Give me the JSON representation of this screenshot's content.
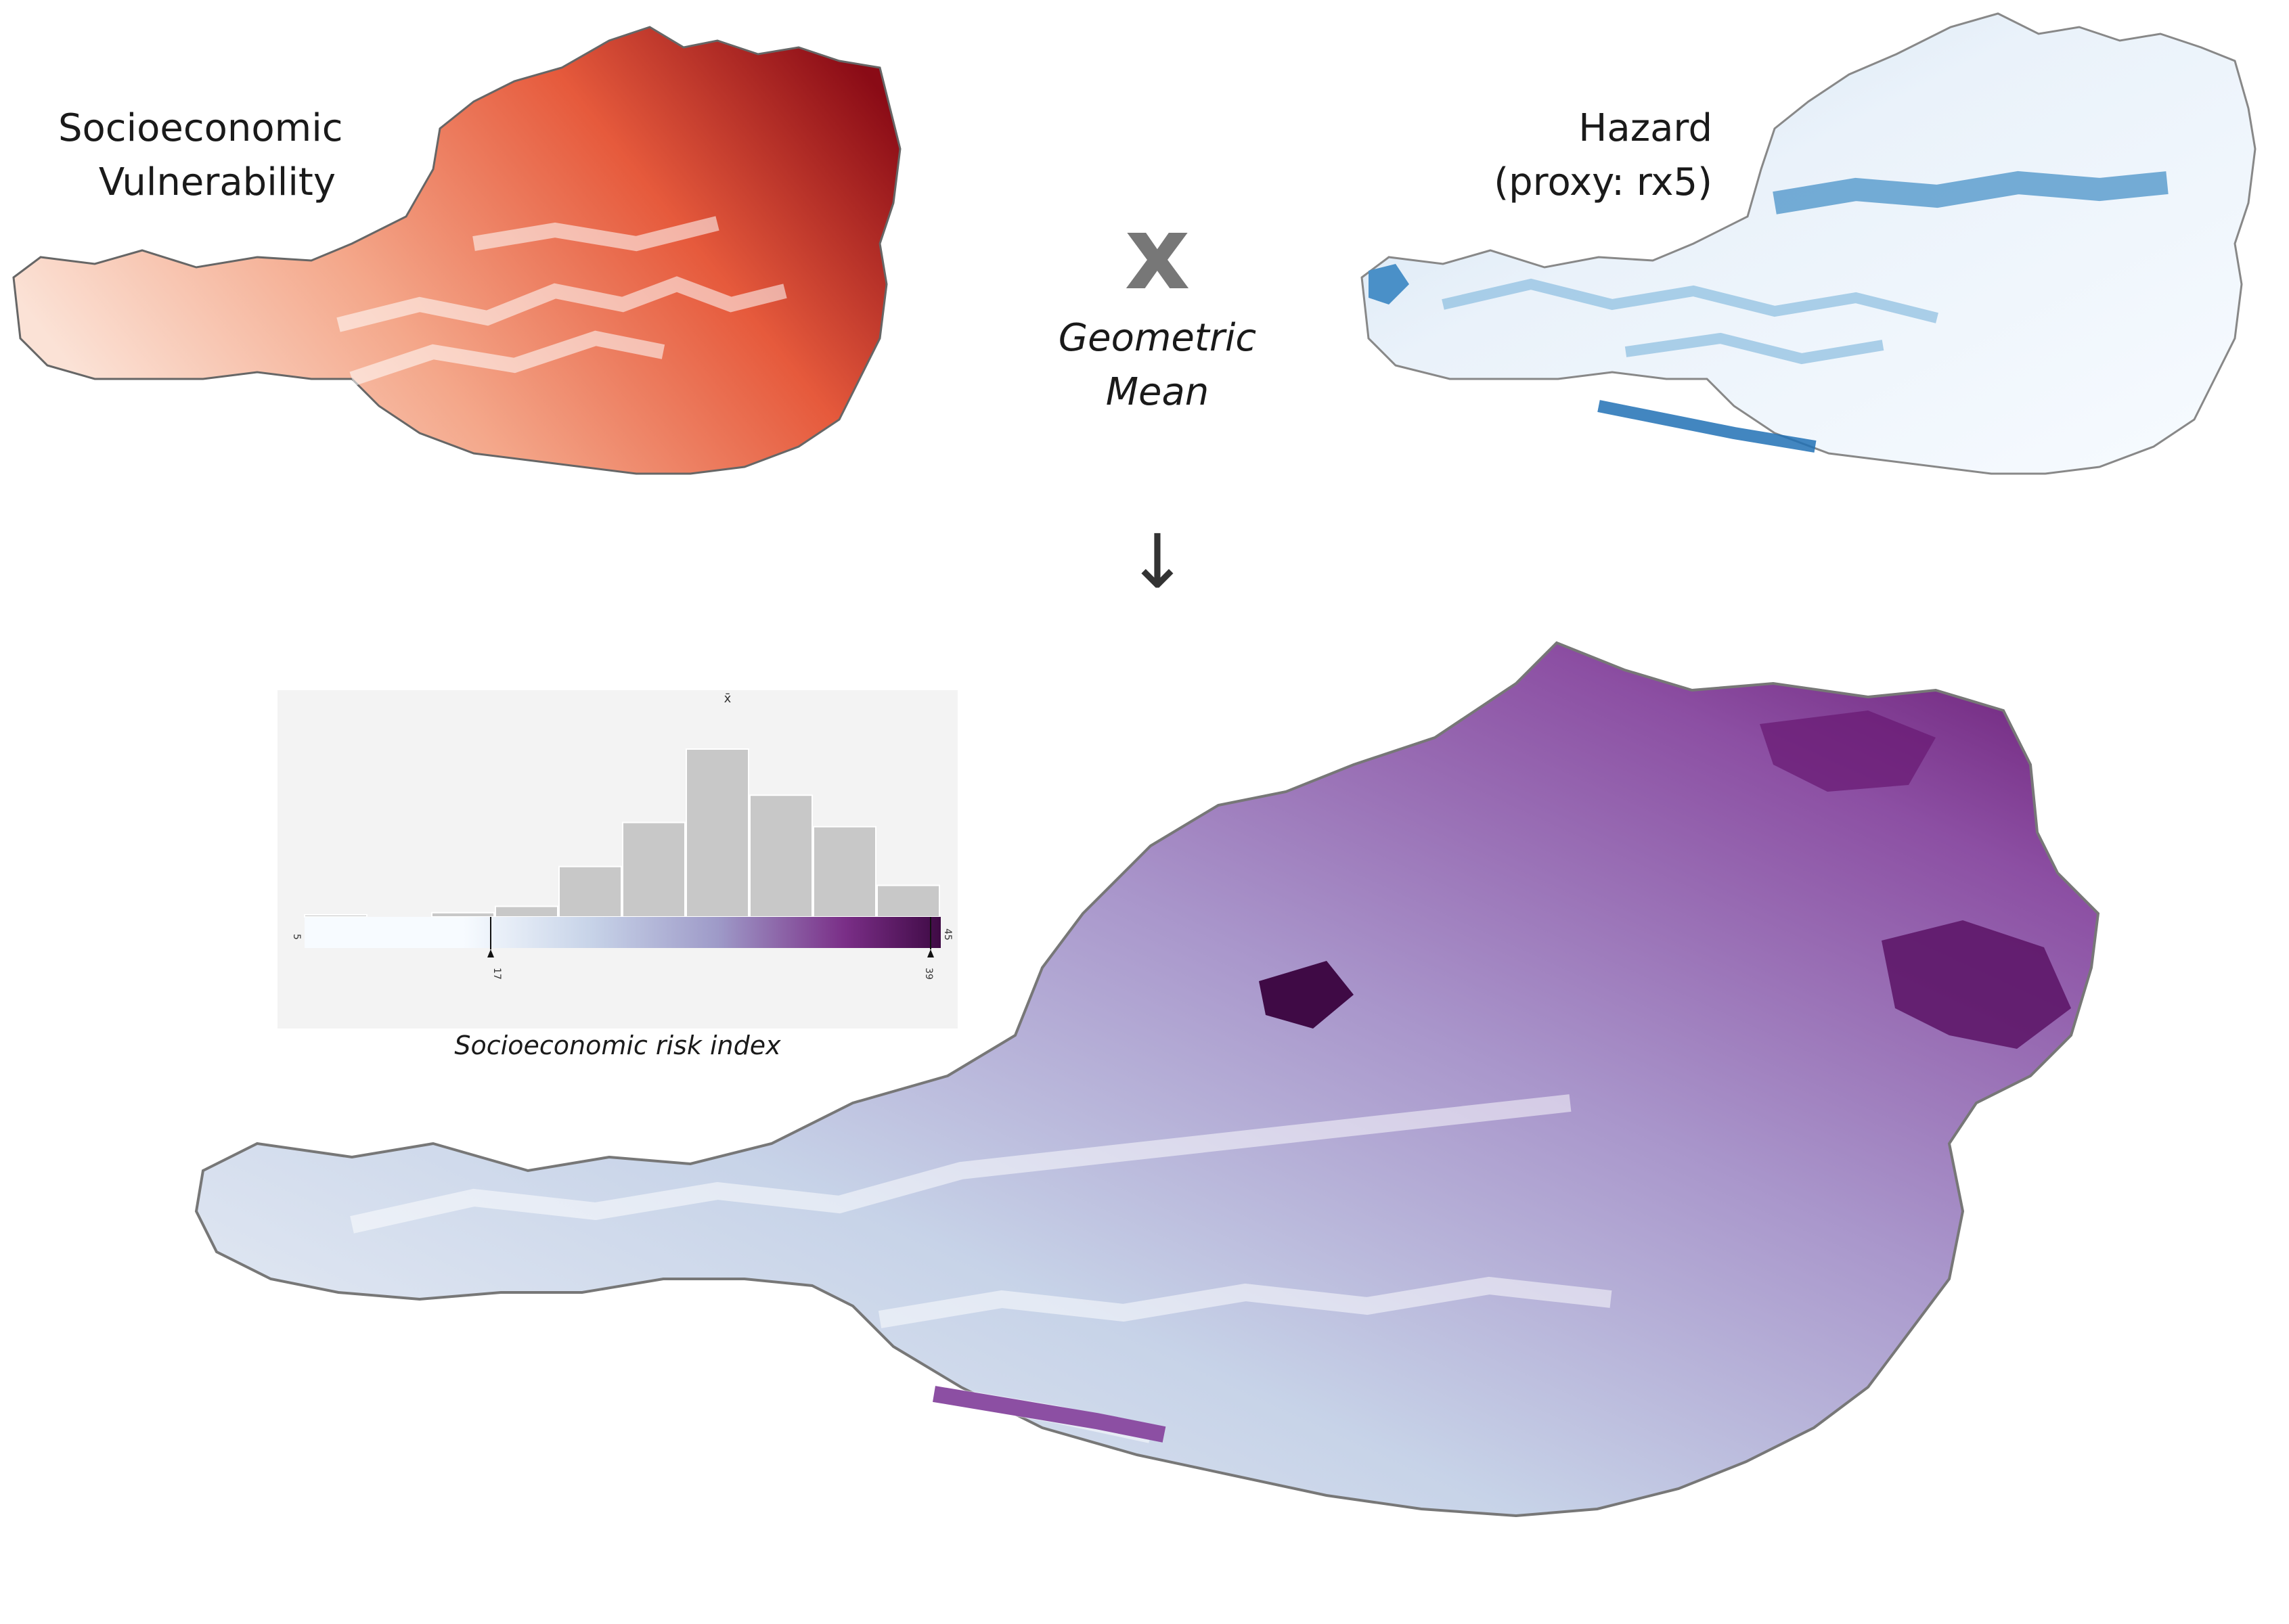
{
  "vulnerability": {
    "title_line1": "Socioeconomic",
    "title_line2": "Vulnerability",
    "colormap": [
      "#fbe2d6",
      "#f4a78a",
      "#e65a3c",
      "#b5121b",
      "#67000d"
    ]
  },
  "hazard": {
    "title_line1": "Hazard",
    "title_line2": "(proxy: rx5)",
    "colormap": [
      "#f2f6fb",
      "#c5dbee",
      "#6aaed6",
      "#2b7bba",
      "#08519c"
    ]
  },
  "operator": {
    "symbol": "x",
    "line1": "Geometric",
    "line2": "Mean"
  },
  "arrow": {
    "symbol": "↓"
  },
  "risk": {
    "colormap": [
      "#f7fbff",
      "#c7d3e8",
      "#9e9ac8",
      "#8c4fa3",
      "#6a1b74",
      "#3f0a45"
    ],
    "histogram": {
      "caption": "Socioeconomic risk index",
      "min_label": "5",
      "marker_low": "17",
      "marker_high": "39",
      "max_label": "45",
      "mean_label": "x̄",
      "bin_heights": [
        0.01,
        0,
        0.02,
        0.05,
        0.24,
        0.45,
        0.8,
        0.58,
        0.43,
        0.15
      ]
    }
  }
}
